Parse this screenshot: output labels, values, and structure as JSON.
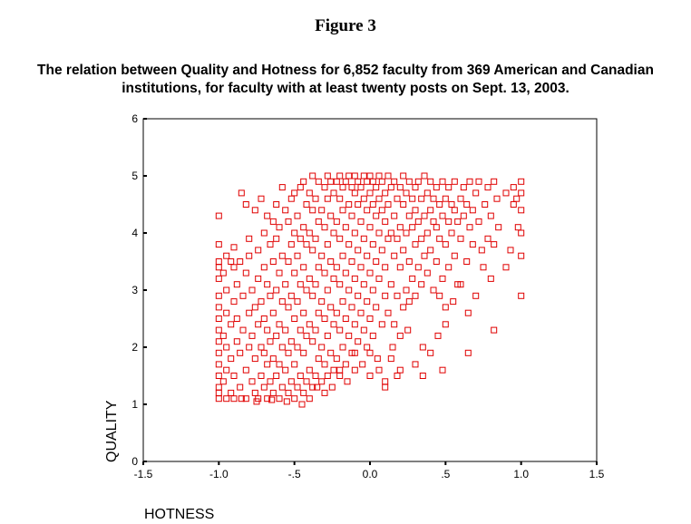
{
  "figure_label": "Figure 3",
  "caption": {
    "line1": "The relation between Quality and Hotness for 6,852 faculty from 369 American and Canadian",
    "line2": "institutions, for faculty with at least twenty posts on Sept. 13, 2003."
  },
  "chart_data": {
    "type": "scatter",
    "xlabel": "HOTNESS",
    "ylabel": "QUALITY",
    "xlim": [
      -1.5,
      1.5
    ],
    "ylim": [
      0,
      6
    ],
    "x_ticks": [
      -1.5,
      -1.0,
      -0.5,
      0.0,
      0.5,
      1.0,
      1.5
    ],
    "x_tick_labels": [
      "-1.5",
      "-1.0",
      "-.5",
      "0.0",
      ".5",
      "1.0",
      "1.5"
    ],
    "y_ticks": [
      0,
      1,
      2,
      3,
      4,
      5,
      6
    ],
    "y_tick_labels": [
      "0",
      "1",
      "2",
      "3",
      "4",
      "5",
      "6"
    ],
    "grid": false,
    "marker": "open-square",
    "marker_color": "#e00000",
    "n_points_reported": 6852,
    "points": [
      [
        -1.0,
        1.1
      ],
      [
        -1.0,
        1.2
      ],
      [
        -1.0,
        1.3
      ],
      [
        -1.0,
        1.5
      ],
      [
        -1.0,
        1.7
      ],
      [
        -1.0,
        1.9
      ],
      [
        -1.0,
        2.1
      ],
      [
        -1.0,
        2.3
      ],
      [
        -1.0,
        2.5
      ],
      [
        -1.0,
        2.7
      ],
      [
        -1.0,
        2.9
      ],
      [
        -1.0,
        3.2
      ],
      [
        -1.0,
        3.4
      ],
      [
        -1.0,
        3.5
      ],
      [
        -1.0,
        3.8
      ],
      [
        -1.0,
        4.3
      ],
      [
        -0.97,
        1.4
      ],
      [
        -0.97,
        2.2
      ],
      [
        -0.97,
        3.3
      ],
      [
        -0.95,
        1.6
      ],
      [
        -0.95,
        2.0
      ],
      [
        -0.95,
        2.6
      ],
      [
        -0.95,
        3.0
      ],
      [
        -0.95,
        3.6
      ],
      [
        -0.92,
        1.2
      ],
      [
        -0.92,
        1.8
      ],
      [
        -0.92,
        2.4
      ],
      [
        -0.92,
        3.5
      ],
      [
        -0.9,
        1.1
      ],
      [
        -0.9,
        1.5
      ],
      [
        -0.9,
        2.8
      ],
      [
        -0.9,
        3.4
      ],
      [
        -0.9,
        3.75
      ],
      [
        -0.88,
        2.1
      ],
      [
        -0.88,
        2.5
      ],
      [
        -0.88,
        3.1
      ],
      [
        -0.86,
        1.3
      ],
      [
        -0.86,
        1.9
      ],
      [
        -0.86,
        3.5
      ],
      [
        -0.85,
        4.7
      ],
      [
        -0.84,
        2.3
      ],
      [
        -0.84,
        2.9
      ],
      [
        -0.82,
        1.1
      ],
      [
        -0.82,
        1.6
      ],
      [
        -0.82,
        3.3
      ],
      [
        -0.82,
        4.5
      ],
      [
        -0.8,
        2.0
      ],
      [
        -0.8,
        2.6
      ],
      [
        -0.8,
        3.6
      ],
      [
        -0.8,
        3.9
      ],
      [
        -0.78,
        1.4
      ],
      [
        -0.78,
        2.2
      ],
      [
        -0.78,
        3.0
      ],
      [
        -0.76,
        1.2
      ],
      [
        -0.76,
        1.8
      ],
      [
        -0.76,
        2.7
      ],
      [
        -0.76,
        4.4
      ],
      [
        -0.74,
        1.1
      ],
      [
        -0.74,
        2.4
      ],
      [
        -0.74,
        3.2
      ],
      [
        -0.74,
        3.7
      ],
      [
        -0.72,
        1.5
      ],
      [
        -0.72,
        2.0
      ],
      [
        -0.72,
        2.8
      ],
      [
        -0.72,
        4.6
      ],
      [
        -0.7,
        1.3
      ],
      [
        -0.7,
        1.9
      ],
      [
        -0.7,
        2.5
      ],
      [
        -0.7,
        3.4
      ],
      [
        -0.7,
        4.0
      ],
      [
        -0.68,
        1.1
      ],
      [
        -0.68,
        1.7
      ],
      [
        -0.68,
        2.3
      ],
      [
        -0.68,
        3.1
      ],
      [
        -0.68,
        4.3
      ],
      [
        -0.66,
        1.4
      ],
      [
        -0.66,
        2.1
      ],
      [
        -0.66,
        2.9
      ],
      [
        -0.66,
        3.8
      ],
      [
        -0.64,
        1.2
      ],
      [
        -0.64,
        1.8
      ],
      [
        -0.64,
        2.6
      ],
      [
        -0.64,
        3.5
      ],
      [
        -0.64,
        4.2
      ],
      [
        -0.62,
        1.5
      ],
      [
        -0.62,
        2.2
      ],
      [
        -0.62,
        3.0
      ],
      [
        -0.62,
        3.9
      ],
      [
        -0.62,
        4.5
      ],
      [
        -0.6,
        1.1
      ],
      [
        -0.6,
        1.7
      ],
      [
        -0.6,
        2.4
      ],
      [
        -0.6,
        3.3
      ],
      [
        -0.6,
        4.1
      ],
      [
        -0.58,
        1.3
      ],
      [
        -0.58,
        2.0
      ],
      [
        -0.58,
        2.8
      ],
      [
        -0.58,
        3.6
      ],
      [
        -0.58,
        4.8
      ],
      [
        -0.56,
        1.6
      ],
      [
        -0.56,
        2.3
      ],
      [
        -0.56,
        3.1
      ],
      [
        -0.56,
        4.4
      ],
      [
        -0.54,
        1.2
      ],
      [
        -0.54,
        1.9
      ],
      [
        -0.54,
        2.7
      ],
      [
        -0.54,
        3.5
      ],
      [
        -0.54,
        4.2
      ],
      [
        -0.52,
        1.4
      ],
      [
        -0.52,
        2.1
      ],
      [
        -0.52,
        2.9
      ],
      [
        -0.52,
        3.8
      ],
      [
        -0.52,
        4.6
      ],
      [
        -0.5,
        1.1
      ],
      [
        -0.5,
        1.7
      ],
      [
        -0.5,
        2.5
      ],
      [
        -0.5,
        3.3
      ],
      [
        -0.5,
        4.0
      ],
      [
        -0.5,
        4.7
      ],
      [
        -0.48,
        1.3
      ],
      [
        -0.48,
        2.0
      ],
      [
        -0.48,
        2.8
      ],
      [
        -0.48,
        3.6
      ],
      [
        -0.48,
        4.3
      ],
      [
        -0.46,
        1.5
      ],
      [
        -0.46,
        2.3
      ],
      [
        -0.46,
        3.1
      ],
      [
        -0.46,
        3.9
      ],
      [
        -0.46,
        4.8
      ],
      [
        -0.44,
        1.2
      ],
      [
        -0.44,
        1.9
      ],
      [
        -0.44,
        2.6
      ],
      [
        -0.44,
        3.4
      ],
      [
        -0.44,
        4.1
      ],
      [
        -0.44,
        4.9
      ],
      [
        -0.42,
        1.4
      ],
      [
        -0.42,
        2.2
      ],
      [
        -0.42,
        3.0
      ],
      [
        -0.42,
        3.8
      ],
      [
        -0.42,
        4.5
      ],
      [
        -0.4,
        1.6
      ],
      [
        -0.4,
        2.4
      ],
      [
        -0.4,
        3.2
      ],
      [
        -0.4,
        4.0
      ],
      [
        -0.4,
        4.7
      ],
      [
        -0.38,
        1.3
      ],
      [
        -0.38,
        2.1
      ],
      [
        -0.38,
        2.9
      ],
      [
        -0.38,
        3.7
      ],
      [
        -0.38,
        4.4
      ],
      [
        -0.38,
        5.0
      ],
      [
        -0.36,
        1.5
      ],
      [
        -0.36,
        2.3
      ],
      [
        -0.36,
        3.1
      ],
      [
        -0.36,
        3.9
      ],
      [
        -0.36,
        4.6
      ],
      [
        -0.34,
        1.8
      ],
      [
        -0.34,
        2.6
      ],
      [
        -0.34,
        3.4
      ],
      [
        -0.34,
        4.2
      ],
      [
        -0.34,
        4.9
      ],
      [
        -0.32,
        1.4
      ],
      [
        -0.32,
        2.0
      ],
      [
        -0.32,
        2.8
      ],
      [
        -0.32,
        3.6
      ],
      [
        -0.32,
        4.4
      ],
      [
        -0.3,
        1.7
      ],
      [
        -0.3,
        2.5
      ],
      [
        -0.3,
        3.3
      ],
      [
        -0.3,
        4.1
      ],
      [
        -0.3,
        4.8
      ],
      [
        -0.28,
        1.5
      ],
      [
        -0.28,
        2.2
      ],
      [
        -0.28,
        3.0
      ],
      [
        -0.28,
        3.8
      ],
      [
        -0.28,
        4.6
      ],
      [
        -0.28,
        5.0
      ],
      [
        -0.26,
        1.9
      ],
      [
        -0.26,
        2.7
      ],
      [
        -0.26,
        3.5
      ],
      [
        -0.26,
        4.3
      ],
      [
        -0.26,
        4.9
      ],
      [
        -0.24,
        1.6
      ],
      [
        -0.24,
        2.4
      ],
      [
        -0.24,
        3.2
      ],
      [
        -0.24,
        4.0
      ],
      [
        -0.24,
        4.7
      ],
      [
        -0.22,
        1.8
      ],
      [
        -0.22,
        2.6
      ],
      [
        -0.22,
        3.4
      ],
      [
        -0.22,
        4.2
      ],
      [
        -0.22,
        4.9
      ],
      [
        -0.2,
        1.5
      ],
      [
        -0.2,
        2.3
      ],
      [
        -0.2,
        3.1
      ],
      [
        -0.2,
        3.9
      ],
      [
        -0.2,
        4.6
      ],
      [
        -0.2,
        5.0
      ],
      [
        -0.18,
        2.0
      ],
      [
        -0.18,
        2.8
      ],
      [
        -0.18,
        3.6
      ],
      [
        -0.18,
        4.4
      ],
      [
        -0.18,
        4.8
      ],
      [
        -0.16,
        1.7
      ],
      [
        -0.16,
        2.5
      ],
      [
        -0.16,
        3.3
      ],
      [
        -0.16,
        4.1
      ],
      [
        -0.16,
        4.9
      ],
      [
        -0.14,
        2.2
      ],
      [
        -0.14,
        3.0
      ],
      [
        -0.14,
        3.8
      ],
      [
        -0.14,
        4.5
      ],
      [
        -0.14,
        5.0
      ],
      [
        -0.12,
        1.9
      ],
      [
        -0.12,
        2.7
      ],
      [
        -0.12,
        3.5
      ],
      [
        -0.12,
        4.3
      ],
      [
        -0.12,
        4.8
      ],
      [
        -0.1,
        1.6
      ],
      [
        -0.1,
        2.4
      ],
      [
        -0.1,
        3.2
      ],
      [
        -0.1,
        4.0
      ],
      [
        -0.1,
        4.7
      ],
      [
        -0.1,
        5.0
      ],
      [
        -0.08,
        2.1
      ],
      [
        -0.08,
        2.9
      ],
      [
        -0.08,
        3.7
      ],
      [
        -0.08,
        4.5
      ],
      [
        -0.08,
        4.9
      ],
      [
        -0.06,
        2.6
      ],
      [
        -0.06,
        3.4
      ],
      [
        -0.06,
        4.2
      ],
      [
        -0.06,
        4.8
      ],
      [
        -0.04,
        2.3
      ],
      [
        -0.04,
        3.1
      ],
      [
        -0.04,
        3.9
      ],
      [
        -0.04,
        4.6
      ],
      [
        -0.04,
        5.0
      ],
      [
        -0.02,
        2.0
      ],
      [
        -0.02,
        2.8
      ],
      [
        -0.02,
        3.6
      ],
      [
        -0.02,
        4.4
      ],
      [
        -0.02,
        4.9
      ],
      [
        0.0,
        1.9
      ],
      [
        0.0,
        2.5
      ],
      [
        0.0,
        3.3
      ],
      [
        0.0,
        4.1
      ],
      [
        0.0,
        4.7
      ],
      [
        0.0,
        5.0
      ],
      [
        0.02,
        2.2
      ],
      [
        0.02,
        3.0
      ],
      [
        0.02,
        3.8
      ],
      [
        0.02,
        4.5
      ],
      [
        0.02,
        4.9
      ],
      [
        0.04,
        2.7
      ],
      [
        0.04,
        3.5
      ],
      [
        0.04,
        4.3
      ],
      [
        0.04,
        4.8
      ],
      [
        0.06,
        1.6
      ],
      [
        0.06,
        3.2
      ],
      [
        0.06,
        4.0
      ],
      [
        0.06,
        4.6
      ],
      [
        0.06,
        5.0
      ],
      [
        0.08,
        2.4
      ],
      [
        0.08,
        3.7
      ],
      [
        0.08,
        4.4
      ],
      [
        0.08,
        4.9
      ],
      [
        0.1,
        1.4
      ],
      [
        0.1,
        2.9
      ],
      [
        0.1,
        3.4
      ],
      [
        0.1,
        4.2
      ],
      [
        0.1,
        4.7
      ],
      [
        0.12,
        2.6
      ],
      [
        0.12,
        3.9
      ],
      [
        0.12,
        4.5
      ],
      [
        0.12,
        5.0
      ],
      [
        0.14,
        1.8
      ],
      [
        0.14,
        3.1
      ],
      [
        0.14,
        4.0
      ],
      [
        0.14,
        4.8
      ],
      [
        0.16,
        2.4
      ],
      [
        0.16,
        3.6
      ],
      [
        0.16,
        4.3
      ],
      [
        0.16,
        4.9
      ],
      [
        0.18,
        1.5
      ],
      [
        0.18,
        2.9
      ],
      [
        0.18,
        3.9
      ],
      [
        0.18,
        4.6
      ],
      [
        0.2,
        2.2
      ],
      [
        0.2,
        3.4
      ],
      [
        0.2,
        4.1
      ],
      [
        0.2,
        4.8
      ],
      [
        0.22,
        2.7
      ],
      [
        0.22,
        3.7
      ],
      [
        0.22,
        4.5
      ],
      [
        0.22,
        5.0
      ],
      [
        0.24,
        3.0
      ],
      [
        0.24,
        4.0
      ],
      [
        0.24,
        4.7
      ],
      [
        0.26,
        2.8
      ],
      [
        0.26,
        3.5
      ],
      [
        0.26,
        4.3
      ],
      [
        0.26,
        4.9
      ],
      [
        0.28,
        3.2
      ],
      [
        0.28,
        4.1
      ],
      [
        0.28,
        4.6
      ],
      [
        0.3,
        2.9
      ],
      [
        0.3,
        3.8
      ],
      [
        0.3,
        4.4
      ],
      [
        0.3,
        4.8
      ],
      [
        0.32,
        3.4
      ],
      [
        0.32,
        4.2
      ],
      [
        0.32,
        4.9
      ],
      [
        0.34,
        3.1
      ],
      [
        0.34,
        3.9
      ],
      [
        0.34,
        4.6
      ],
      [
        0.36,
        3.6
      ],
      [
        0.36,
        4.3
      ],
      [
        0.36,
        5.0
      ],
      [
        0.38,
        3.3
      ],
      [
        0.38,
        4.0
      ],
      [
        0.38,
        4.7
      ],
      [
        0.4,
        3.7
      ],
      [
        0.4,
        4.4
      ],
      [
        0.4,
        4.9
      ],
      [
        0.42,
        3.0
      ],
      [
        0.42,
        4.2
      ],
      [
        0.42,
        4.6
      ],
      [
        0.44,
        3.5
      ],
      [
        0.44,
        4.1
      ],
      [
        0.44,
        4.8
      ],
      [
        0.46,
        2.9
      ],
      [
        0.46,
        3.9
      ],
      [
        0.46,
        4.5
      ],
      [
        0.48,
        3.2
      ],
      [
        0.48,
        4.3
      ],
      [
        0.48,
        4.9
      ],
      [
        0.5,
        2.7
      ],
      [
        0.5,
        3.8
      ],
      [
        0.5,
        4.6
      ],
      [
        0.52,
        3.4
      ],
      [
        0.52,
        4.2
      ],
      [
        0.52,
        4.8
      ],
      [
        0.54,
        4.0
      ],
      [
        0.54,
        4.5
      ],
      [
        0.56,
        3.6
      ],
      [
        0.56,
        4.4
      ],
      [
        0.56,
        4.9
      ],
      [
        0.58,
        3.1
      ],
      [
        0.58,
        4.2
      ],
      [
        0.6,
        3.9
      ],
      [
        0.6,
        4.6
      ],
      [
        0.62,
        4.3
      ],
      [
        0.62,
        4.8
      ],
      [
        0.64,
        3.5
      ],
      [
        0.64,
        4.5
      ],
      [
        0.66,
        4.1
      ],
      [
        0.66,
        4.9
      ],
      [
        0.68,
        3.8
      ],
      [
        0.68,
        4.4
      ],
      [
        0.7,
        4.7
      ],
      [
        0.72,
        4.2
      ],
      [
        0.72,
        4.9
      ],
      [
        0.74,
        3.7
      ],
      [
        0.76,
        4.5
      ],
      [
        0.78,
        4.8
      ],
      [
        0.8,
        4.3
      ],
      [
        0.82,
        4.9
      ],
      [
        0.84,
        4.6
      ],
      [
        0.9,
        4.7
      ],
      [
        0.95,
        4.5
      ],
      [
        0.95,
        4.8
      ],
      [
        1.0,
        4.9
      ],
      [
        1.0,
        4.7
      ],
      [
        1.0,
        4.4
      ],
      [
        1.0,
        4.0
      ],
      [
        1.0,
        3.6
      ],
      [
        1.0,
        2.9
      ],
      [
        0.98,
        4.1
      ],
      [
        0.97,
        4.6
      ],
      [
        0.93,
        3.7
      ],
      [
        0.9,
        3.4
      ],
      [
        0.85,
        4.1
      ],
      [
        0.82,
        3.8
      ],
      [
        0.8,
        3.2
      ],
      [
        0.78,
        3.9
      ],
      [
        0.75,
        3.4
      ],
      [
        0.7,
        2.9
      ],
      [
        0.65,
        2.6
      ],
      [
        0.6,
        3.1
      ],
      [
        0.55,
        2.8
      ],
      [
        0.5,
        2.4
      ],
      [
        0.45,
        2.2
      ],
      [
        0.4,
        1.9
      ],
      [
        0.35,
        2.0
      ],
      [
        0.3,
        1.7
      ],
      [
        0.25,
        2.3
      ],
      [
        0.2,
        1.6
      ],
      [
        0.15,
        2.0
      ],
      [
        0.1,
        1.3
      ],
      [
        0.05,
        1.8
      ],
      [
        0.0,
        1.5
      ],
      [
        -0.05,
        1.7
      ],
      [
        -0.1,
        1.9
      ],
      [
        -0.15,
        1.4
      ],
      [
        -0.2,
        1.6
      ],
      [
        -0.25,
        1.3
      ],
      [
        -0.3,
        1.2
      ],
      [
        -0.35,
        1.3
      ],
      [
        -0.4,
        1.1
      ],
      [
        -0.45,
        1.0
      ],
      [
        -0.55,
        1.05
      ],
      [
        -0.65,
        1.08
      ],
      [
        -0.75,
        1.05
      ],
      [
        -0.85,
        1.1
      ],
      [
        -0.95,
        1.1
      ],
      [
        0.82,
        2.3
      ],
      [
        0.65,
        1.9
      ],
      [
        0.48,
        1.6
      ],
      [
        0.35,
        1.5
      ]
    ]
  }
}
